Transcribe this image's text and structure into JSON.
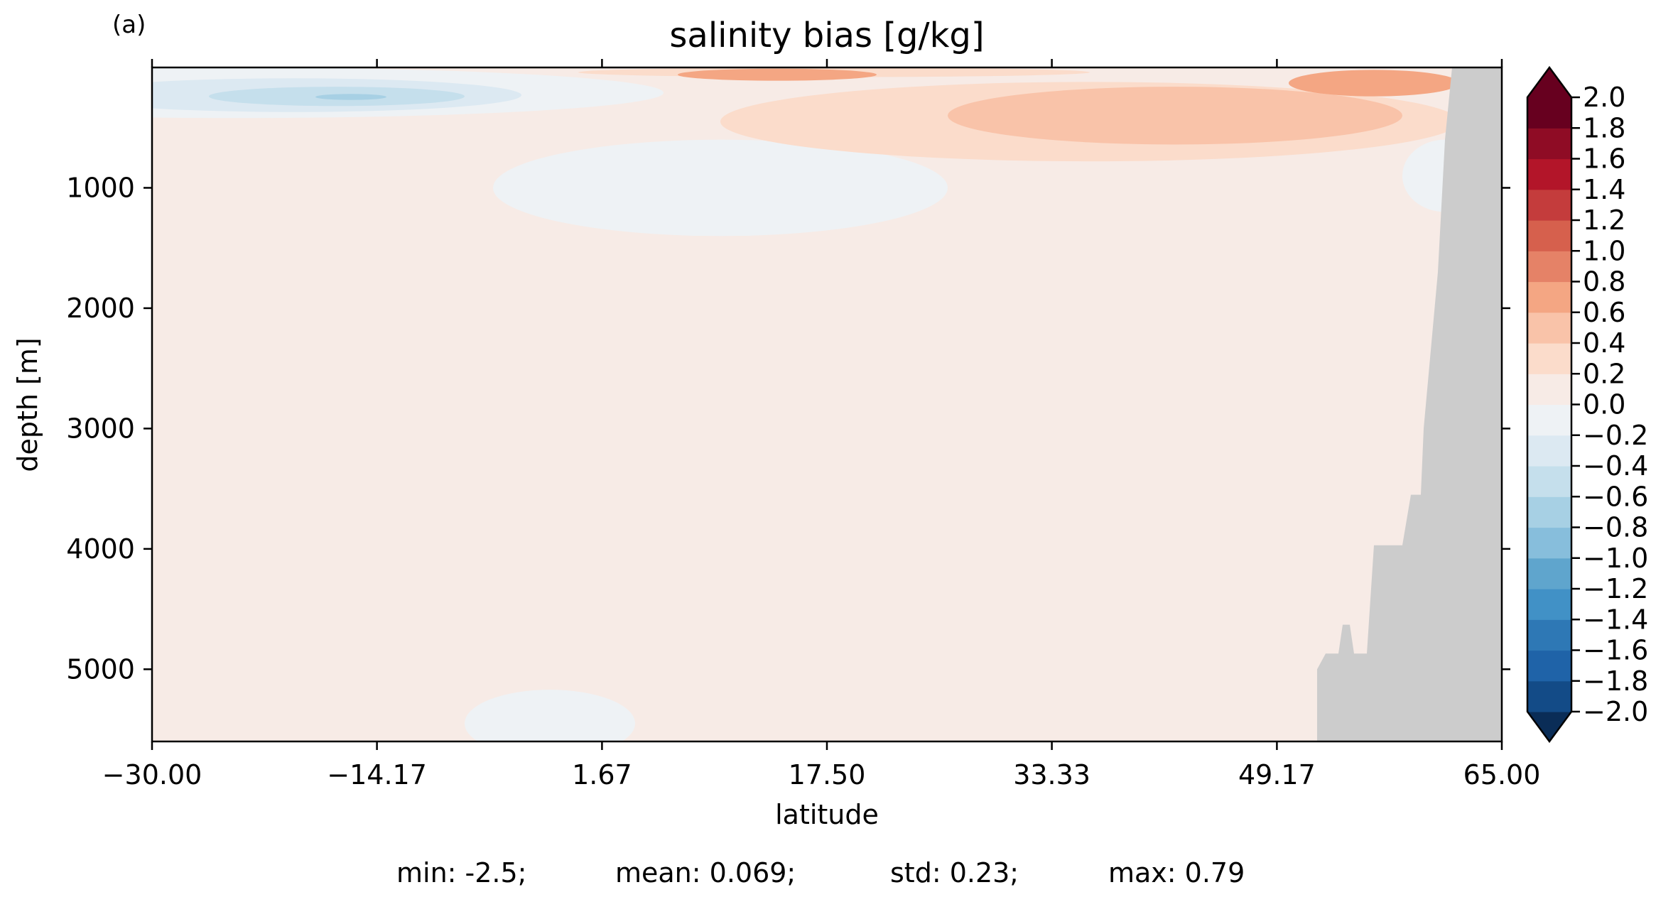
{
  "chart_data": {
    "type": "heatmap",
    "panel_label": "(a)",
    "title": "salinity bias [g/kg]",
    "xlabel": "latitude",
    "ylabel": "depth [m]",
    "xlim": [
      -30.0,
      65.0
    ],
    "ylim": [
      5600,
      0
    ],
    "x_ticks": [
      -30.0,
      -14.17,
      1.67,
      17.5,
      33.33,
      49.17,
      65.0
    ],
    "x_tick_labels": [
      "−30.00",
      "−14.17",
      "1.67",
      "17.50",
      "33.33",
      "49.17",
      "65.00"
    ],
    "x_top_ticks": [
      -30.0,
      -14.17,
      1.67,
      17.5,
      33.33,
      49.17,
      65.0
    ],
    "y_ticks": [
      1000,
      2000,
      3000,
      4000,
      5000
    ],
    "y_tick_labels": [
      "1000",
      "2000",
      "3000",
      "4000",
      "5000"
    ],
    "grid": false,
    "background_bias": 0.05,
    "bias_regions": [
      {
        "kind": "ellipse",
        "cx": -24,
        "cy": 210,
        "rx": 30,
        "ry": 210,
        "value": -0.1
      },
      {
        "kind": "ellipse",
        "cx": -20,
        "cy": 230,
        "rx": 16,
        "ry": 140,
        "value": -0.3
      },
      {
        "kind": "ellipse",
        "cx": -17,
        "cy": 240,
        "rx": 9,
        "ry": 80,
        "value": -0.5
      },
      {
        "kind": "ellipse",
        "cx": -16,
        "cy": 245,
        "rx": 2.5,
        "ry": 25,
        "value": -0.7
      },
      {
        "kind": "ellipse",
        "cx": 10,
        "cy": 1000,
        "rx": 16,
        "ry": 400,
        "value": -0.1
      },
      {
        "kind": "ellipse",
        "cx": 61,
        "cy": 900,
        "rx": 3,
        "ry": 300,
        "value": -0.1
      },
      {
        "kind": "ellipse",
        "cx": -2,
        "cy": 5450,
        "rx": 6,
        "ry": 280,
        "value": -0.1
      },
      {
        "kind": "ellipse",
        "cx": 36,
        "cy": 450,
        "rx": 26,
        "ry": 330,
        "value": 0.3
      },
      {
        "kind": "ellipse",
        "cx": 42,
        "cy": 400,
        "rx": 16,
        "ry": 240,
        "value": 0.5
      },
      {
        "kind": "ellipse",
        "cx": 56,
        "cy": 130,
        "rx": 6,
        "ry": 110,
        "value": 0.7
      },
      {
        "kind": "ellipse",
        "cx": 18,
        "cy": 40,
        "rx": 18,
        "ry": 40,
        "value": 0.3
      },
      {
        "kind": "ellipse",
        "cx": 14,
        "cy": 60,
        "rx": 7,
        "ry": 50,
        "value": 0.7
      }
    ],
    "land_mask": [
      [
        52.0,
        5600
      ],
      [
        52.0,
        5000
      ],
      [
        52.6,
        4870
      ],
      [
        53.5,
        4870
      ],
      [
        53.8,
        4630
      ],
      [
        54.3,
        4630
      ],
      [
        54.6,
        4870
      ],
      [
        55.5,
        4870
      ],
      [
        56.0,
        3970
      ],
      [
        58.0,
        3970
      ],
      [
        58.6,
        3550
      ],
      [
        59.3,
        3550
      ],
      [
        59.5,
        3000
      ],
      [
        60.5,
        1700
      ],
      [
        61.0,
        600
      ],
      [
        61.5,
        0
      ],
      [
        65.0,
        0
      ],
      [
        65.0,
        5600
      ]
    ],
    "land_color": "#cccccc",
    "colorbar": {
      "levels": [
        -2.0,
        -1.8,
        -1.6,
        -1.4,
        -1.2,
        -1.0,
        -0.8,
        -0.6,
        -0.4,
        -0.2,
        0.0,
        0.2,
        0.4,
        0.6,
        0.8,
        1.0,
        1.2,
        1.4,
        1.6,
        1.8,
        2.0
      ],
      "tick_labels": [
        "−2.0",
        "−1.8",
        "−1.6",
        "−1.4",
        "−1.2",
        "−1.0",
        "−0.8",
        "−0.6",
        "−0.4",
        "−0.2",
        "0.0",
        "0.2",
        "0.4",
        "0.6",
        "0.8",
        "1.0",
        "1.2",
        "1.4",
        "1.6",
        "1.8",
        "2.0"
      ],
      "colors": [
        "#134b87",
        "#1f63a8",
        "#2e78b5",
        "#4191c6",
        "#5fa5cd",
        "#87bedc",
        "#a7d0e4",
        "#c5dfec",
        "#dce9f2",
        "#eef2f5",
        "#f7ebe6",
        "#fbdccb",
        "#f9c3a9",
        "#f4a683",
        "#e58267",
        "#d6604d",
        "#c43c3c",
        "#b31529",
        "#8f0c25",
        "#67001f"
      ],
      "under_color": "#0a2d57",
      "over_color": "#67001f",
      "extend": "both"
    },
    "stats": [
      "min: -2.5;",
      "mean: 0.069;",
      "std: 0.23;",
      "max: 0.79"
    ]
  }
}
